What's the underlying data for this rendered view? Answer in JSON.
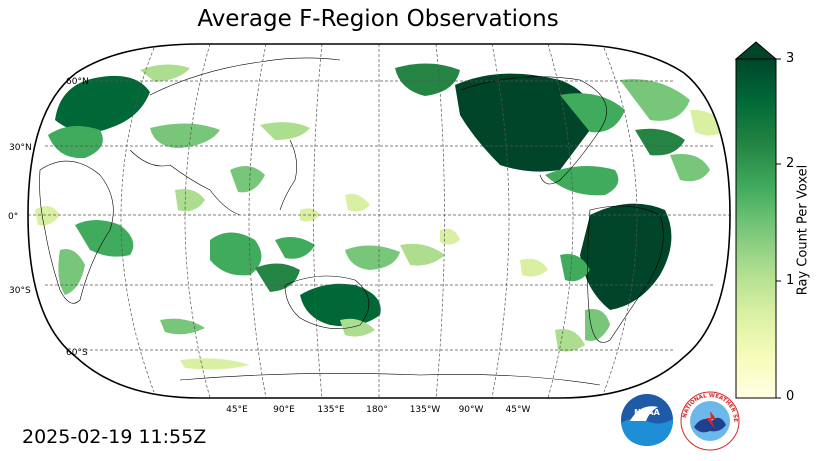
{
  "title": "Average F-Region Observations",
  "timestamp": "2025-02-19 11:55Z",
  "projection": "Robinson",
  "center_longitude": 180,
  "graticule": {
    "lat_labels": [
      "60°N",
      "30°N",
      "0°",
      "30°S",
      "60°S"
    ],
    "lon_labels": [
      "45°E",
      "90°E",
      "135°E",
      "180°",
      "135°W",
      "90°W",
      "45°W"
    ]
  },
  "colorbar": {
    "label": "Ray Count Per Voxel",
    "min": 0,
    "max": 3,
    "ticks": [
      "0",
      "1",
      "2",
      "3"
    ],
    "extend": "max",
    "colormap": "YlGn",
    "colors": [
      "#ffffe5",
      "#f7fcb9",
      "#d9f0a3",
      "#addd8e",
      "#78c679",
      "#41ab5d",
      "#238443",
      "#006837",
      "#004529"
    ]
  },
  "logos": {
    "noaa": "NOAA",
    "nws": "NATIONAL WEATHER SERVICE"
  }
}
